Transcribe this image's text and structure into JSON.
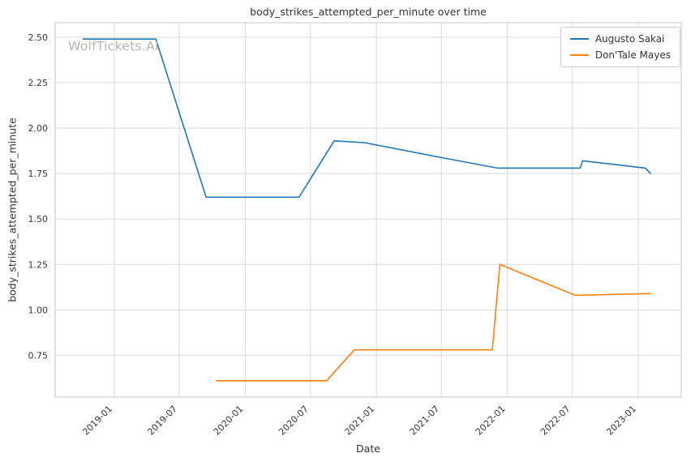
{
  "figure": {
    "watermark": "WolfTickets.AI",
    "background": "#ffffff",
    "grid_color": "#d9d9d9",
    "frame_color": "#cfcfcf",
    "text_color": "#333333"
  },
  "chart_data": {
    "type": "line",
    "title": "body_strikes_attempted_per_minute over time",
    "xlabel": "Date",
    "ylabel": "body_strikes_attempted_per_minute",
    "grid": true,
    "legend_position": "upper right",
    "x_tick_labels": [
      "2019-01",
      "2019-07",
      "2020-01",
      "2020-07",
      "2021-01",
      "2021-07",
      "2022-01",
      "2022-07",
      "2023-01"
    ],
    "y_tick_labels": [
      "0.75",
      "1.00",
      "1.25",
      "1.50",
      "1.75",
      "2.00",
      "2.25",
      "2.50"
    ],
    "xlim": [
      "2018-07-20",
      "2023-05-01"
    ],
    "ylim": [
      0.52,
      2.58
    ],
    "series": [
      {
        "name": "Augusto Sakai",
        "color": "#1f77b4",
        "points": [
          [
            "2018-10-06",
            2.49
          ],
          [
            "2019-04-27",
            2.49
          ],
          [
            "2019-09-14",
            1.62
          ],
          [
            "2020-05-30",
            1.62
          ],
          [
            "2020-09-05",
            1.93
          ],
          [
            "2020-11-28",
            1.92
          ],
          [
            "2021-06-26",
            1.84
          ],
          [
            "2021-12-04",
            1.78
          ],
          [
            "2022-07-23",
            1.78
          ],
          [
            "2022-07-30",
            1.82
          ],
          [
            "2023-01-21",
            1.78
          ],
          [
            "2023-02-04",
            1.75
          ]
        ]
      },
      {
        "name": "Don'Tale Mayes",
        "color": "#ff7f0e",
        "points": [
          [
            "2019-10-12",
            0.61
          ],
          [
            "2020-08-15",
            0.61
          ],
          [
            "2020-10-31",
            0.78
          ],
          [
            "2021-11-20",
            0.78
          ],
          [
            "2021-12-11",
            1.25
          ],
          [
            "2022-07-09",
            1.08
          ],
          [
            "2023-02-04",
            1.09
          ]
        ]
      }
    ]
  }
}
